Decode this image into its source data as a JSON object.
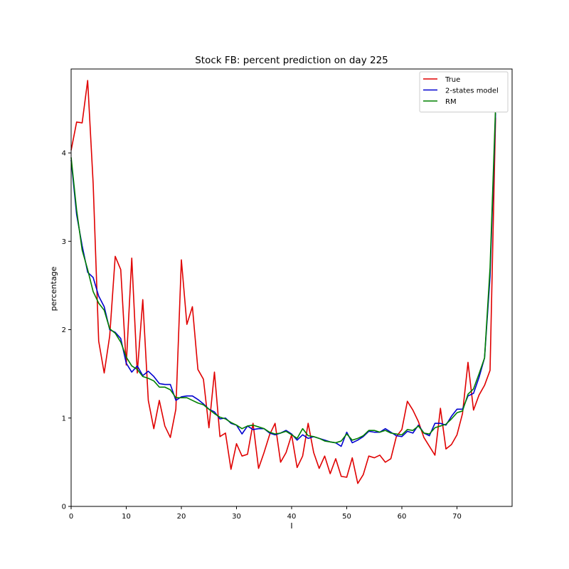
{
  "chart_data": {
    "type": "line",
    "title": "Stock FB: percent prediction on day 225",
    "xlabel": "I",
    "ylabel": "percentage",
    "xlim": [
      0,
      80
    ],
    "ylim": [
      0,
      4.95
    ],
    "xticks": [
      0,
      10,
      20,
      30,
      40,
      50,
      60,
      70
    ],
    "yticks": [
      0,
      1,
      2,
      3,
      4
    ],
    "grid": false,
    "legend_position": "top-right",
    "series": [
      {
        "name": "True",
        "color": "#e00000",
        "values": [
          4.03,
          4.35,
          4.34,
          4.82,
          3.65,
          1.87,
          1.51,
          1.93,
          2.83,
          2.68,
          1.6,
          2.81,
          1.51,
          2.34,
          1.2,
          0.88,
          1.2,
          0.91,
          0.78,
          1.1,
          2.79,
          2.06,
          2.26,
          1.55,
          1.44,
          0.89,
          1.52,
          0.79,
          0.83,
          0.42,
          0.71,
          0.57,
          0.59,
          0.94,
          0.43,
          0.61,
          0.81,
          0.94,
          0.5,
          0.61,
          0.81,
          0.44,
          0.57,
          0.94,
          0.61,
          0.43,
          0.57,
          0.37,
          0.54,
          0.34,
          0.33,
          0.55,
          0.26,
          0.36,
          0.57,
          0.55,
          0.58,
          0.5,
          0.54,
          0.79,
          0.87,
          1.19,
          1.09,
          0.96,
          0.78,
          0.68,
          0.58,
          1.11,
          0.65,
          0.7,
          0.81,
          1.05,
          1.63,
          1.09,
          1.26,
          1.37,
          1.54,
          4.4
        ]
      },
      {
        "name": "2-states model",
        "color": "#0000d0",
        "values": [
          3.92,
          3.3,
          2.95,
          2.65,
          2.59,
          2.38,
          2.26,
          2.0,
          1.97,
          1.9,
          1.62,
          1.52,
          1.59,
          1.48,
          1.53,
          1.47,
          1.39,
          1.38,
          1.38,
          1.2,
          1.24,
          1.25,
          1.25,
          1.21,
          1.16,
          1.1,
          1.07,
          0.99,
          1.0,
          0.94,
          0.92,
          0.82,
          0.91,
          0.87,
          0.88,
          0.88,
          0.83,
          0.81,
          0.83,
          0.86,
          0.82,
          0.75,
          0.81,
          0.77,
          0.79,
          0.77,
          0.75,
          0.73,
          0.72,
          0.68,
          0.84,
          0.72,
          0.75,
          0.79,
          0.85,
          0.84,
          0.84,
          0.88,
          0.84,
          0.8,
          0.79,
          0.85,
          0.83,
          0.92,
          0.83,
          0.8,
          0.94,
          0.94,
          0.92,
          1.02,
          1.1,
          1.1,
          1.25,
          1.28,
          1.46,
          1.68,
          2.6,
          4.45
        ]
      },
      {
        "name": "RM",
        "color": "#008000",
        "values": [
          3.95,
          3.35,
          2.9,
          2.68,
          2.43,
          2.3,
          2.22,
          2.01,
          1.96,
          1.86,
          1.69,
          1.59,
          1.55,
          1.47,
          1.45,
          1.42,
          1.35,
          1.35,
          1.32,
          1.23,
          1.23,
          1.23,
          1.2,
          1.17,
          1.15,
          1.1,
          1.05,
          1.01,
          0.99,
          0.95,
          0.92,
          0.88,
          0.91,
          0.92,
          0.9,
          0.88,
          0.84,
          0.82,
          0.83,
          0.85,
          0.81,
          0.77,
          0.88,
          0.8,
          0.79,
          0.77,
          0.74,
          0.73,
          0.72,
          0.74,
          0.82,
          0.75,
          0.77,
          0.8,
          0.86,
          0.86,
          0.84,
          0.86,
          0.83,
          0.82,
          0.81,
          0.87,
          0.86,
          0.91,
          0.83,
          0.82,
          0.89,
          0.91,
          0.93,
          0.99,
          1.06,
          1.08,
          1.27,
          1.33,
          1.5,
          1.68,
          2.7,
          4.52
        ]
      }
    ]
  }
}
